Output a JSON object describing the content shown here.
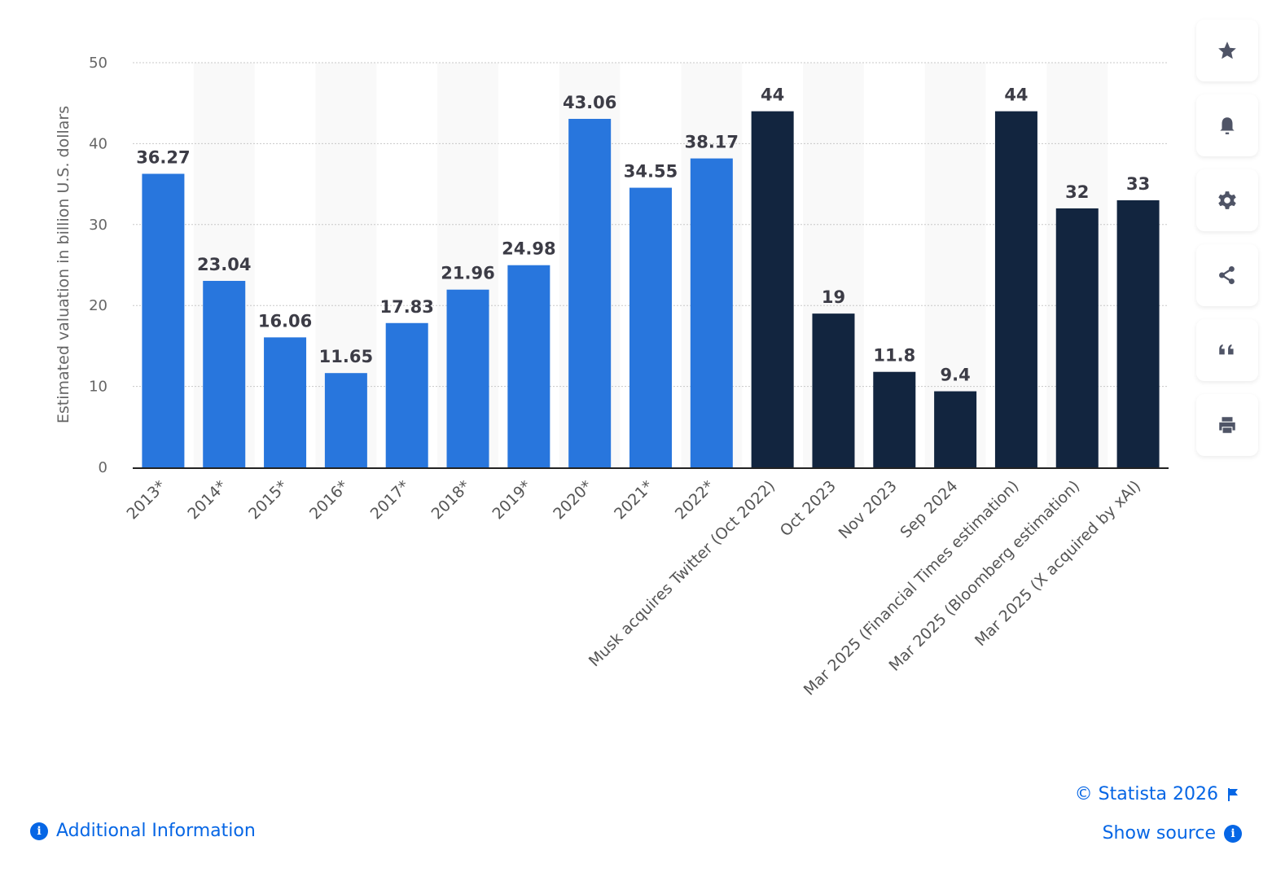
{
  "chart_data": {
    "type": "bar",
    "ylabel": "Estimated valuation in billion U.S. dollars",
    "ylim": [
      0,
      50
    ],
    "yticks": [
      0,
      10,
      20,
      30,
      40,
      50
    ],
    "grid": true,
    "categories": [
      "2013*",
      "2014*",
      "2015*",
      "2016*",
      "2017*",
      "2018*",
      "2019*",
      "2020*",
      "2021*",
      "2022*",
      "Musk acquires Twitter (Oct 2022)",
      "Oct 2023",
      "Nov 2023",
      "Sep 2024",
      "Mar 2025 (Financial Times estimation)",
      "Mar 2025 (Bloomberg estimation)",
      "Mar 2025 (X acquired by xAI)"
    ],
    "values": [
      36.27,
      23.04,
      16.06,
      11.65,
      17.83,
      21.96,
      24.98,
      43.06,
      34.55,
      38.17,
      44,
      19,
      11.8,
      9.4,
      44,
      32,
      33
    ],
    "data_labels": [
      "36.27",
      "23.04",
      "16.06",
      "11.65",
      "17.83",
      "21.96",
      "24.98",
      "43.06",
      "34.55",
      "38.17",
      "44",
      "19",
      "11.8",
      "9.4",
      "44",
      "32",
      "33"
    ],
    "bar_colors": [
      "#2876dd",
      "#2876dd",
      "#2876dd",
      "#2876dd",
      "#2876dd",
      "#2876dd",
      "#2876dd",
      "#2876dd",
      "#2876dd",
      "#2876dd",
      "#12253f",
      "#12253f",
      "#12253f",
      "#12253f",
      "#12253f",
      "#12253f",
      "#12253f"
    ]
  },
  "sidebar": {
    "icons": [
      "star-icon",
      "bell-icon",
      "gear-icon",
      "share-icon",
      "quote-icon",
      "print-icon"
    ]
  },
  "footer": {
    "additional_info": "Additional Information",
    "copyright": "© Statista 2026",
    "show_source": "Show source",
    "info_glyph": "i"
  }
}
